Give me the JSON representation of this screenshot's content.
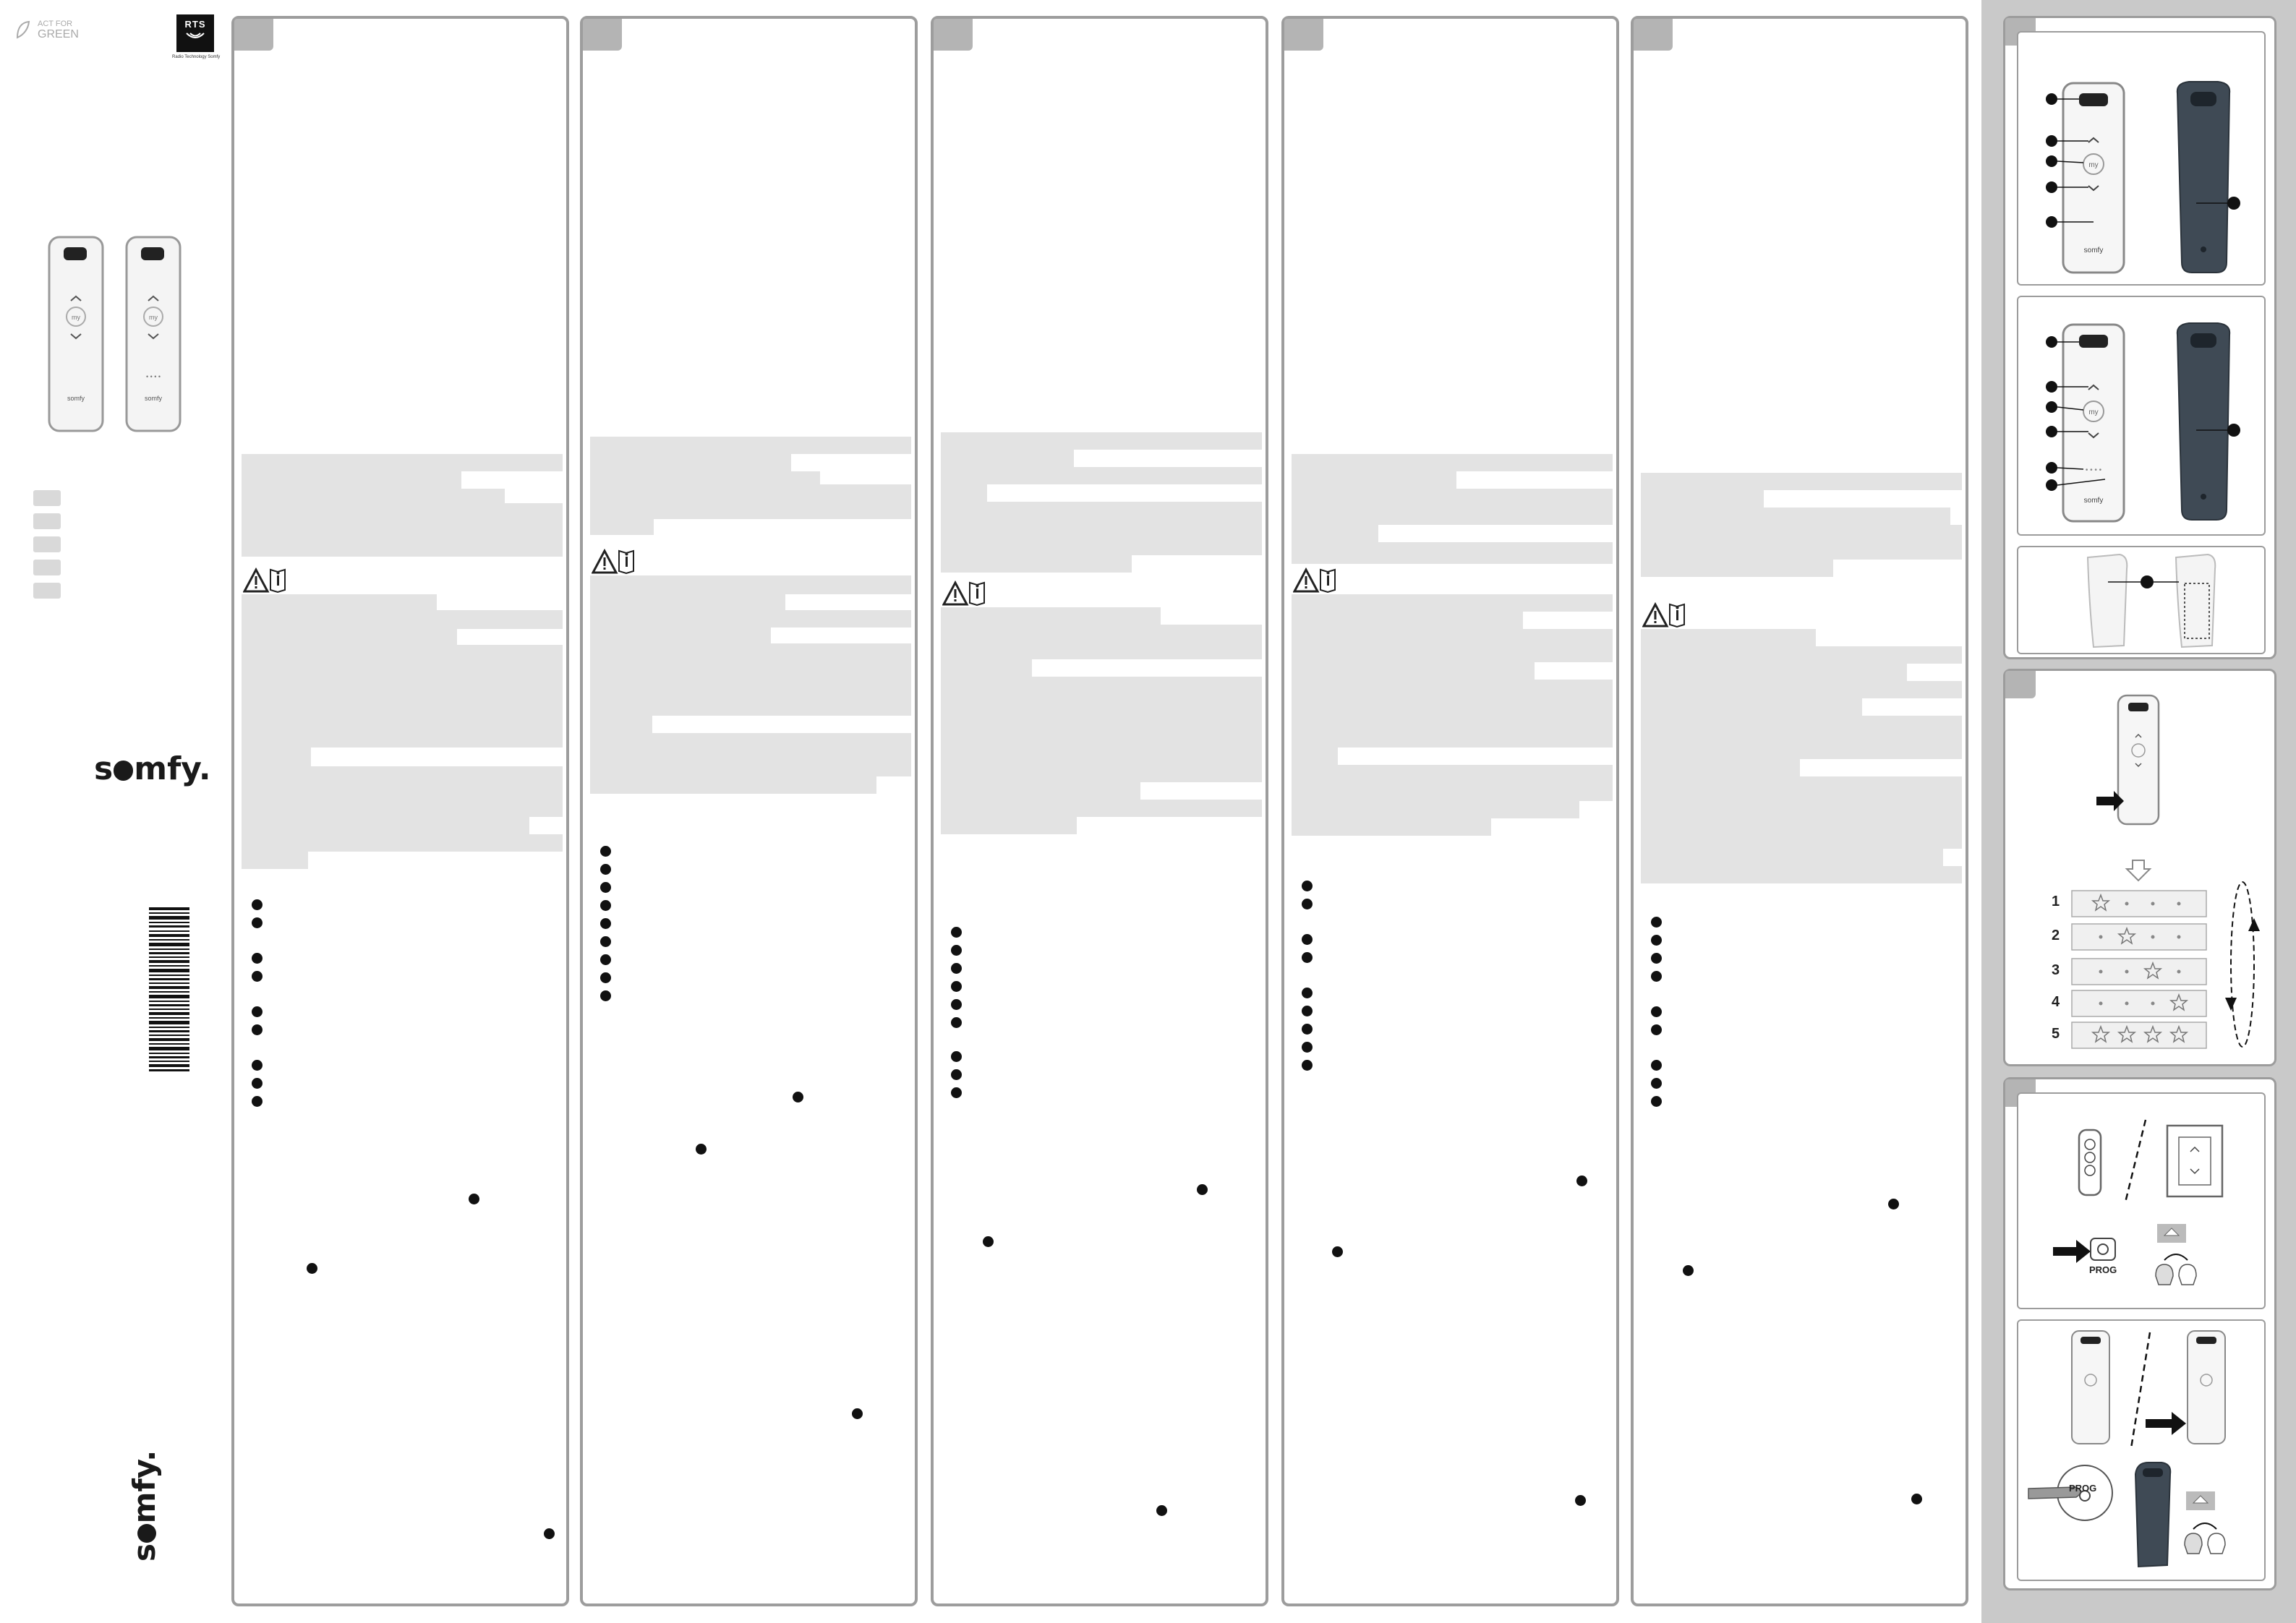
{
  "left": {
    "act_green_line1": "ACT FOR",
    "act_green_line2": "GREEN",
    "rts_label": "RTS",
    "rts_sub": "Radio Technology Somfy",
    "brand": "somfy"
  },
  "right": {
    "prog_label_1": "PROG",
    "prog_label_2": "PROG",
    "steps": [
      "1",
      "2",
      "3",
      "4",
      "5"
    ]
  },
  "colors": {
    "panel_border": "#9d9d9d",
    "text_block": "#e3e3e3",
    "right_bg": "#c9c9c9",
    "remote_dark": "#3f4a55"
  }
}
